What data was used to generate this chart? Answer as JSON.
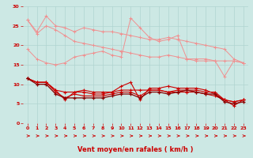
{
  "xlabel": "Vent moyen/en rafales ( km/h )",
  "bg_color": "#cce8e4",
  "grid_color": "#b0d4d0",
  "x": [
    0,
    1,
    2,
    3,
    4,
    5,
    6,
    7,
    8,
    9,
    10,
    11,
    12,
    13,
    14,
    15,
    16,
    17,
    18,
    19,
    20,
    21,
    22,
    23
  ],
  "line_light1": [
    26.5,
    23.5,
    27.5,
    25.0,
    24.5,
    23.5,
    24.5,
    24.0,
    23.5,
    23.5,
    23.0,
    22.5,
    22.0,
    21.5,
    21.5,
    22.0,
    21.5,
    21.0,
    20.5,
    20.0,
    19.5,
    19.0,
    16.5,
    15.5
  ],
  "line_light2": [
    26.5,
    23.0,
    25.0,
    24.0,
    22.5,
    21.0,
    20.5,
    20.0,
    19.5,
    19.0,
    18.5,
    18.0,
    17.5,
    17.0,
    17.0,
    17.5,
    17.0,
    16.5,
    16.5,
    16.5,
    16.0,
    16.0,
    16.0,
    15.5
  ],
  "line_light3": [
    19.0,
    16.5,
    15.5,
    15.0,
    15.5,
    17.0,
    17.5,
    18.0,
    18.5,
    17.5,
    17.0,
    27.0,
    24.5,
    22.0,
    21.0,
    21.5,
    22.5,
    16.5,
    16.0,
    16.0,
    16.0,
    12.0,
    16.0,
    15.5
  ],
  "line_dark1": [
    11.5,
    10.5,
    10.5,
    8.5,
    6.0,
    8.0,
    8.0,
    7.5,
    7.5,
    8.0,
    9.5,
    10.5,
    6.0,
    9.0,
    9.0,
    9.5,
    9.0,
    9.0,
    9.0,
    8.5,
    7.5,
    6.0,
    4.5,
    6.0
  ],
  "line_dark2": [
    11.5,
    10.5,
    10.5,
    8.5,
    8.0,
    8.0,
    8.5,
    8.0,
    8.0,
    8.0,
    8.5,
    8.5,
    8.5,
    8.5,
    8.5,
    8.0,
    8.0,
    8.0,
    8.0,
    7.5,
    7.0,
    6.0,
    5.5,
    6.0
  ],
  "line_dark3": [
    11.5,
    10.5,
    10.5,
    8.0,
    6.5,
    7.5,
    7.0,
    7.0,
    7.0,
    7.5,
    8.0,
    8.0,
    7.0,
    8.5,
    8.5,
    8.0,
    8.5,
    8.5,
    8.5,
    8.0,
    8.0,
    6.0,
    5.5,
    6.0
  ],
  "line_dark4": [
    11.5,
    10.0,
    10.0,
    7.5,
    6.5,
    6.5,
    6.5,
    6.5,
    6.5,
    7.0,
    7.5,
    7.5,
    6.5,
    8.0,
    8.0,
    7.5,
    8.0,
    8.5,
    8.0,
    7.5,
    7.5,
    5.5,
    5.0,
    5.5
  ],
  "light_color": "#f09090",
  "dark_color": "#cc0000",
  "dark_color2": "#880000",
  "ylim": [
    0,
    30
  ],
  "xlim": [
    0,
    23
  ],
  "yticks": [
    0,
    5,
    10,
    15,
    20,
    25,
    30
  ],
  "xticks": [
    0,
    1,
    2,
    3,
    4,
    5,
    6,
    7,
    8,
    9,
    10,
    11,
    12,
    13,
    14,
    15,
    16,
    17,
    18,
    19,
    20,
    21,
    22,
    23
  ]
}
